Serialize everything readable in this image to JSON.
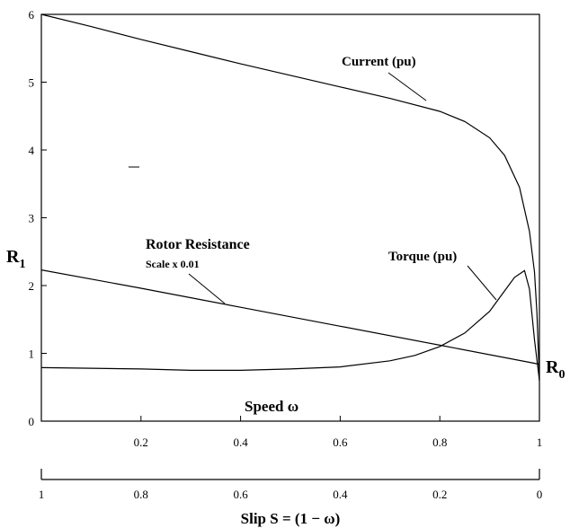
{
  "chart_data": {
    "type": "line",
    "x_axis_top": {
      "label": "Speed ω",
      "ticks": [
        "0.2",
        "0.4",
        "0.6",
        "0.8",
        "1"
      ],
      "tick_values": [
        0.2,
        0.4,
        0.6,
        0.8,
        1.0
      ],
      "range": [
        0,
        1
      ]
    },
    "x_axis_bottom": {
      "label": "Slip S = (1 − ω)",
      "ticks": [
        "1",
        "0.8",
        "0.6",
        "0.4",
        "0.2",
        "0"
      ],
      "tick_values": [
        1,
        0.8,
        0.6,
        0.4,
        0.2,
        0
      ]
    },
    "y_axis": {
      "ticks": [
        "0",
        "1",
        "2",
        "3",
        "4",
        "5",
        "6"
      ],
      "tick_values": [
        0,
        1,
        2,
        3,
        4,
        5,
        6
      ],
      "range": [
        0,
        6
      ]
    },
    "grid": false,
    "series": [
      {
        "name": "Current (pu)",
        "x": [
          0,
          0.1,
          0.2,
          0.3,
          0.4,
          0.5,
          0.6,
          0.7,
          0.8,
          0.85,
          0.9,
          0.93,
          0.96,
          0.98,
          0.99,
          0.995,
          1.0
        ],
        "y": [
          6.0,
          5.82,
          5.63,
          5.45,
          5.27,
          5.1,
          4.93,
          4.76,
          4.57,
          4.42,
          4.18,
          3.92,
          3.45,
          2.8,
          2.2,
          1.6,
          0.6
        ]
      },
      {
        "name": "Torque (pu)",
        "x": [
          0,
          0.1,
          0.2,
          0.3,
          0.4,
          0.5,
          0.6,
          0.7,
          0.75,
          0.8,
          0.85,
          0.9,
          0.93,
          0.95,
          0.97,
          0.98,
          0.99,
          1.0
        ],
        "y": [
          0.79,
          0.78,
          0.77,
          0.75,
          0.75,
          0.77,
          0.8,
          0.89,
          0.97,
          1.1,
          1.3,
          1.62,
          1.92,
          2.12,
          2.22,
          1.95,
          1.2,
          0.6
        ]
      },
      {
        "name": "Rotor Resistance",
        "x": [
          0,
          0.2,
          0.4,
          0.6,
          0.8,
          1.0
        ],
        "y": [
          2.23,
          1.96,
          1.68,
          1.4,
          1.12,
          0.84
        ]
      }
    ],
    "annotations": {
      "current_label": "Current (pu)",
      "torque_label": "Torque (pu)",
      "rotor_label": "Rotor Resistance",
      "rotor_scale": "Scale x 0.01",
      "r1_main": "R",
      "r1_sub": "1",
      "r0_main": "R",
      "r0_sub": "0"
    }
  }
}
